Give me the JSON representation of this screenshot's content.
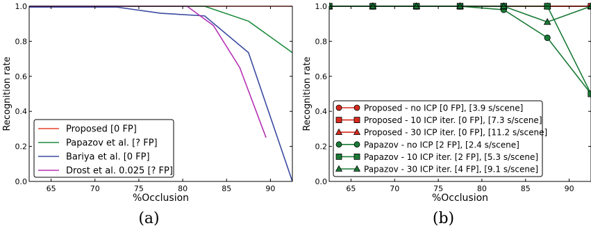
{
  "chart_data": [
    {
      "type": "line",
      "caption": "(a)",
      "xlabel": "%Occlusion",
      "ylabel": "Recognition rate",
      "xlim": [
        62.5,
        92.5
      ],
      "ylim": [
        0,
        1.0
      ],
      "xticks": [
        "65",
        "70",
        "75",
        "80",
        "85",
        "90"
      ],
      "yticks": [
        "0.0",
        "0.2",
        "0.4",
        "0.6",
        "0.8",
        "1.0"
      ],
      "legend_position": "lower-left",
      "grid": false,
      "series": [
        {
          "name": "Proposed [0 FP]",
          "color": "#e8412c",
          "marker": "none",
          "points": [
            [
              62.5,
              1.0
            ],
            [
              92.5,
              1.0
            ]
          ]
        },
        {
          "name": "Papazov et al. [? FP]",
          "color": "#1a8a3c",
          "marker": "none",
          "points": [
            [
              62.5,
              1.0
            ],
            [
              82.5,
              1.0
            ],
            [
              87.5,
              0.915
            ],
            [
              92.5,
              0.735
            ]
          ]
        },
        {
          "name": "Bariya et al. [0 FP]",
          "color": "#3b4aa0",
          "marker": "none",
          "points": [
            [
              62.5,
              0.995
            ],
            [
              72.5,
              0.995
            ],
            [
              77.5,
              0.96
            ],
            [
              82.5,
              0.945
            ],
            [
              87.5,
              0.735
            ],
            [
              92.5,
              0.0
            ]
          ]
        },
        {
          "name": "Drost et al. 0.025 [? FP]",
          "color": "#b432b4",
          "marker": "none",
          "points": [
            [
              62.5,
              1.0
            ],
            [
              80.5,
              1.0
            ],
            [
              83.5,
              0.89
            ],
            [
              86.5,
              0.65
            ],
            [
              89.5,
              0.25
            ]
          ]
        }
      ]
    },
    {
      "type": "line",
      "caption": "(b)",
      "xlabel": "%Occlusion",
      "ylabel": "Recognition rate",
      "xlim": [
        62.5,
        92.5
      ],
      "ylim": [
        0,
        1.0
      ],
      "xticks": [
        "65",
        "70",
        "75",
        "80",
        "85",
        "90"
      ],
      "yticks": [
        "0.0",
        "0.2",
        "0.4",
        "0.6",
        "0.8",
        "1.0"
      ],
      "legend_position": "lower-left",
      "grid": false,
      "series": [
        {
          "name": "Proposed - no ICP [0 FP], [3.9 s/scene]",
          "color": "#d62b1e",
          "marker": "circle",
          "points": [
            [
              62.5,
              1.0
            ],
            [
              67.5,
              1.0
            ],
            [
              72.5,
              1.0
            ],
            [
              77.5,
              1.0
            ],
            [
              82.5,
              1.0
            ],
            [
              87.5,
              1.0
            ],
            [
              92.5,
              1.0
            ]
          ]
        },
        {
          "name": "Proposed - 10 ICP iter. [0 FP], [7.3 s/scene]",
          "color": "#d62b1e",
          "marker": "square",
          "points": [
            [
              62.5,
              1.0
            ],
            [
              67.5,
              1.0
            ],
            [
              72.5,
              1.0
            ],
            [
              77.5,
              1.0
            ],
            [
              82.5,
              1.0
            ],
            [
              87.5,
              1.0
            ],
            [
              92.5,
              1.0
            ]
          ]
        },
        {
          "name": "Proposed - 30 ICP iter. [0 FP], [11.2 s/scene]",
          "color": "#d62b1e",
          "marker": "triangle",
          "points": [
            [
              62.5,
              1.0
            ],
            [
              67.5,
              1.0
            ],
            [
              72.5,
              1.0
            ],
            [
              77.5,
              1.0
            ],
            [
              82.5,
              1.0
            ],
            [
              87.5,
              1.0
            ],
            [
              92.5,
              1.0
            ]
          ]
        },
        {
          "name": "Papazov - no ICP [2 FP], [2.4 s/scene]",
          "color": "#1a7a36",
          "marker": "circle",
          "points": [
            [
              62.5,
              1.0
            ],
            [
              67.5,
              1.0
            ],
            [
              72.5,
              1.0
            ],
            [
              77.5,
              1.0
            ],
            [
              82.5,
              0.98
            ],
            [
              87.5,
              0.82
            ],
            [
              92.5,
              0.5
            ]
          ]
        },
        {
          "name": "Papazov - 10 ICP iter. [2 FP], [5.3 s/scene]",
          "color": "#1a7a36",
          "marker": "square",
          "points": [
            [
              62.5,
              1.0
            ],
            [
              67.5,
              1.0
            ],
            [
              72.5,
              1.0
            ],
            [
              77.5,
              1.0
            ],
            [
              82.5,
              1.0
            ],
            [
              87.5,
              1.0
            ],
            [
              92.5,
              0.5
            ]
          ]
        },
        {
          "name": "Papazov - 30 ICP iter. [4 FP], [9.1 s/scene]",
          "color": "#1a7a36",
          "marker": "triangle",
          "points": [
            [
              62.5,
              1.0
            ],
            [
              67.5,
              1.0
            ],
            [
              72.5,
              1.0
            ],
            [
              77.5,
              1.0
            ],
            [
              82.5,
              1.0
            ],
            [
              87.5,
              0.91
            ],
            [
              92.5,
              1.0
            ]
          ]
        }
      ]
    }
  ]
}
